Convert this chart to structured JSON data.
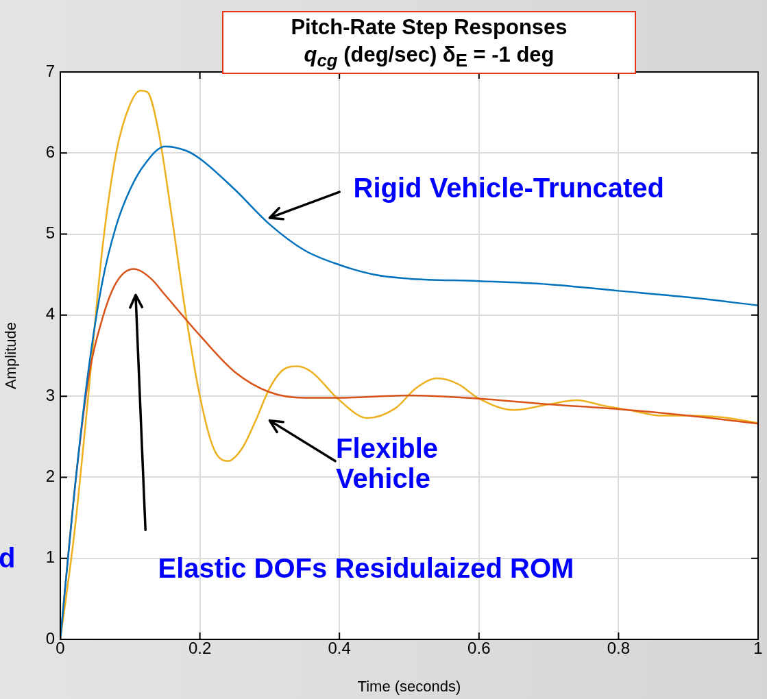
{
  "chart_data": {
    "type": "line",
    "title": "Pitch-Rate Step Responses",
    "subtitle": "q$_{cg}$ (deg/sec) δ$_{E}$ = -1 deg",
    "xlabel": "Time (seconds)",
    "ylabel": "Amplitude",
    "xlim": [
      0,
      1
    ],
    "xticks": [
      0,
      0.2,
      0.4,
      0.6,
      0.8,
      1
    ],
    "ylim": [
      0,
      7
    ],
    "yticks": [
      0,
      1,
      2,
      3,
      4,
      5,
      6,
      7
    ],
    "grid": true,
    "legend": false,
    "marker": "none",
    "line_style": "solid",
    "annotations": [
      "d",
      "Elastic DOFs Residulaized ROM"
    ],
    "series": [
      {
        "name": "Rigid Vehicle-Truncated",
        "color": "#0072bd",
        "x": [
          0,
          0.02,
          0.04,
          0.06,
          0.08,
          0.1,
          0.12,
          0.15,
          0.18,
          0.2,
          0.25,
          0.3,
          0.35,
          0.4,
          0.45,
          0.5,
          0.6,
          0.7,
          0.8,
          0.9,
          1
        ],
        "values": [
          0,
          1.8,
          3.3,
          4.4,
          5.1,
          5.55,
          5.85,
          6.08,
          6.03,
          5.93,
          5.55,
          5.12,
          4.8,
          4.62,
          4.5,
          4.45,
          4.42,
          4.38,
          4.3,
          4.22,
          4.12
        ]
      },
      {
        "color": "#d95319",
        "x": [
          0,
          0.02,
          0.04,
          0.06,
          0.08,
          0.105,
          0.13,
          0.15,
          0.2,
          0.25,
          0.3,
          0.35,
          0.4,
          0.5,
          0.6,
          0.7,
          0.8,
          0.9,
          1
        ],
        "values": [
          0,
          1.8,
          3.2,
          3.95,
          4.4,
          4.57,
          4.45,
          4.25,
          3.75,
          3.3,
          3.05,
          2.98,
          2.98,
          3.01,
          2.97,
          2.9,
          2.84,
          2.76,
          2.66
        ]
      },
      {
        "name": "Flexible Vehicle",
        "color": "#edb120",
        "x": [
          0,
          0.02,
          0.04,
          0.06,
          0.08,
          0.1,
          0.115,
          0.125,
          0.14,
          0.16,
          0.18,
          0.2,
          0.22,
          0.24,
          0.26,
          0.28,
          0.3,
          0.32,
          0.34,
          0.36,
          0.4,
          0.44,
          0.48,
          0.51,
          0.54,
          0.57,
          0.6,
          0.65,
          0.7,
          0.74,
          0.78,
          0.82,
          0.86,
          0.9,
          0.95,
          1
        ],
        "values": [
          0,
          1.3,
          3.0,
          4.8,
          6.0,
          6.6,
          6.77,
          6.75,
          6.3,
          5.2,
          4.0,
          3.0,
          2.35,
          2.2,
          2.35,
          2.7,
          3.1,
          3.33,
          3.37,
          3.3,
          2.95,
          2.73,
          2.85,
          3.1,
          3.22,
          3.15,
          2.97,
          2.83,
          2.9,
          2.95,
          2.88,
          2.82,
          2.76,
          2.76,
          2.74,
          2.67
        ]
      }
    ]
  }
}
